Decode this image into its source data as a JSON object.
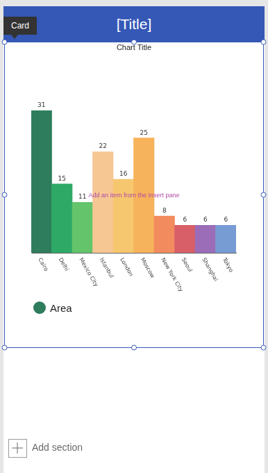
{
  "header": {
    "title": "[Title]",
    "tooltip": "Card"
  },
  "chart_data": {
    "type": "bar",
    "title": "Chart Title",
    "categories": [
      "Cairo",
      "Delhi",
      "Mexico City",
      "Istanbul",
      "London",
      "Moscow",
      "New York City",
      "Seoul",
      "Shanghai",
      "Tokyo"
    ],
    "series": [
      {
        "name": "Area",
        "values": [
          31,
          15,
          11,
          22,
          16,
          25,
          8,
          6,
          6,
          6
        ],
        "colors": [
          "#2e7d5c",
          "#2eaa66",
          "#63c46c",
          "#f6c793",
          "#f6c76f",
          "#f7b35b",
          "#f28b5e",
          "#d85f67",
          "#9b6cb8",
          "#779bd3"
        ]
      }
    ],
    "ylim": [
      0,
      31
    ],
    "grid": false,
    "data_labels": true,
    "tick_labels": "x",
    "legend": "bottom"
  },
  "placeholder": "Add an item from the Insert pane",
  "footer": {
    "button": "Add section"
  }
}
